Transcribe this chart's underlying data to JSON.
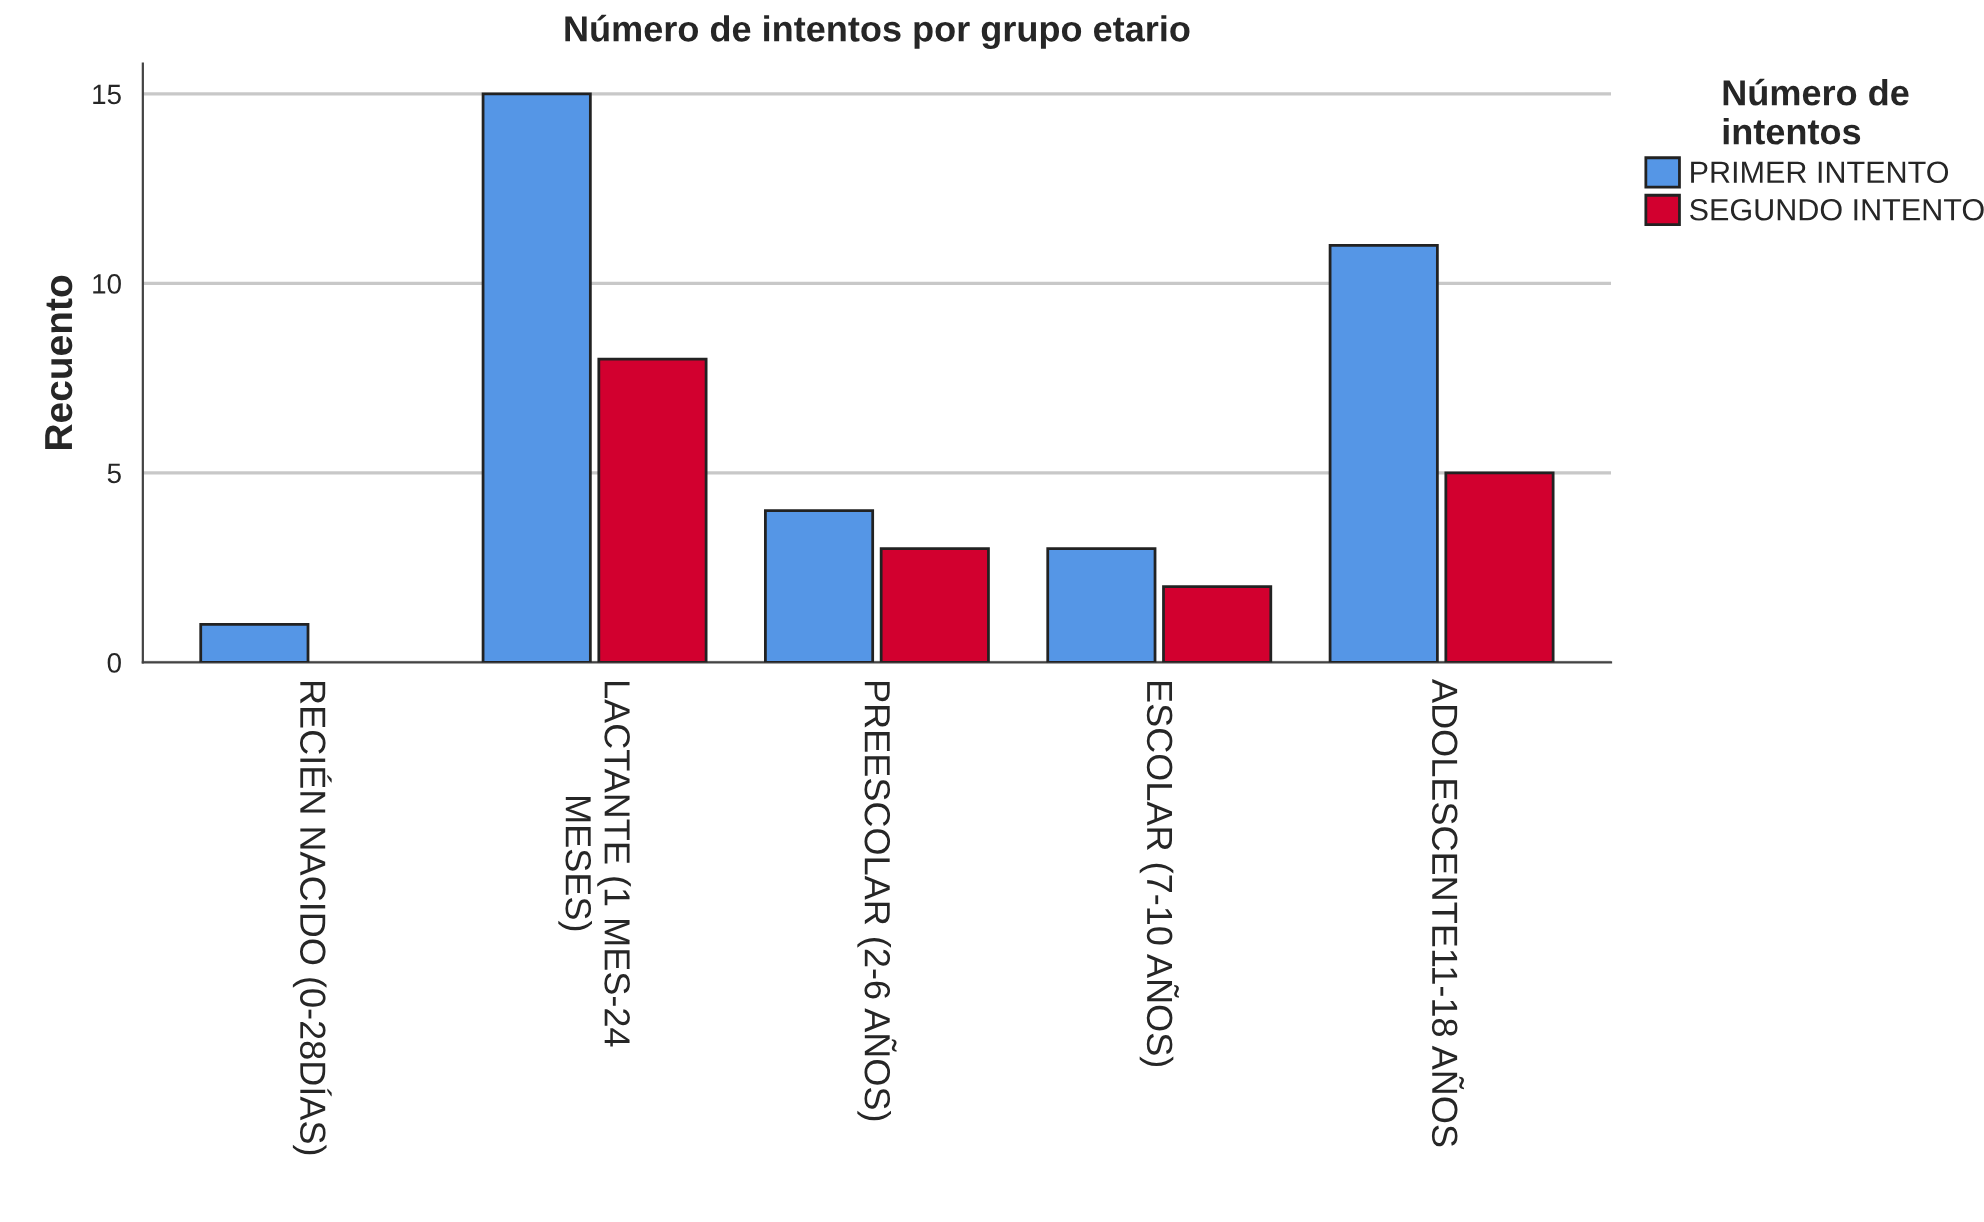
{
  "chart_data": {
    "type": "bar",
    "title": "Número de intentos por grupo etario",
    "ylabel": "Recuento",
    "legend_title": "Número de\nintentos",
    "categories": [
      "RECIÉN NACIDO (0-28DÍAS)",
      "LACTANTE (1 MES-24\nMESES)",
      "PREESCOLAR (2-6 AÑOS)",
      "ESCOLAR (7-10 AÑOS)",
      "ADOLESCENTE11-18 AÑOS"
    ],
    "series": [
      {
        "name": "PRIMER INTENTO",
        "color": "#5596e6",
        "values": [
          1,
          15,
          4,
          3,
          11
        ]
      },
      {
        "name": "SEGUNDO INTENTO",
        "color": "#d2002f",
        "values": [
          null,
          8,
          3,
          2,
          5
        ]
      }
    ],
    "ylim": [
      0,
      15.8
    ],
    "yticks": [
      0,
      5,
      10,
      15
    ],
    "grid": "y",
    "legend": "top right"
  }
}
